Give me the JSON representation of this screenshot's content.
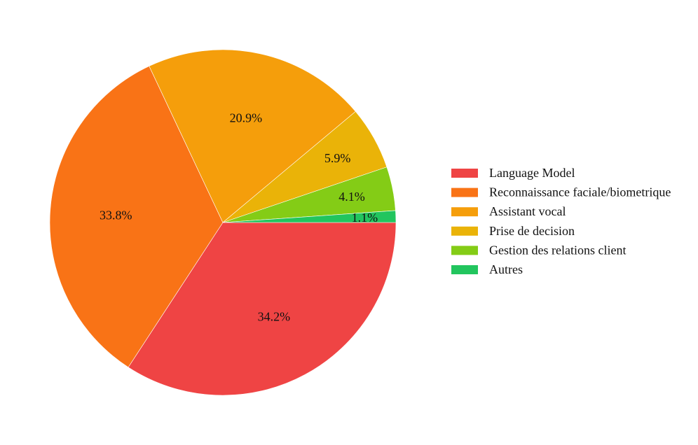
{
  "chart_data": {
    "type": "pie",
    "title": "",
    "legend_position": "right",
    "slices": [
      {
        "label": "Language Model",
        "value": 34.2,
        "display": "34.2%",
        "color": "#ef4444"
      },
      {
        "label": "Reconnaissance faciale/biometrique",
        "value": 33.8,
        "display": "33.8%",
        "color": "#f97316"
      },
      {
        "label": "Assistant vocal",
        "value": 20.9,
        "display": "20.9%",
        "color": "#f59e0b"
      },
      {
        "label": "Prise de decision",
        "value": 5.9,
        "display": "5.9%",
        "color": "#eab308"
      },
      {
        "label": "Gestion des relations client",
        "value": 4.1,
        "display": "4.1%",
        "color": "#84cc16"
      },
      {
        "label": "Autres",
        "value": 1.1,
        "display": "1.1%",
        "color": "#22c55e"
      }
    ]
  }
}
